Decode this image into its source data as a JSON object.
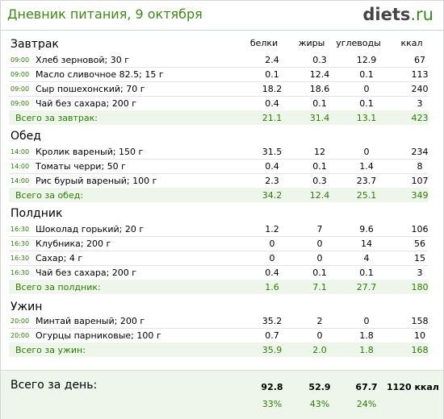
{
  "header": {
    "title": "Дневник питания, 9 октября",
    "brand_main": "diets",
    "brand_tld": ".ru"
  },
  "columns": {
    "protein": "белки",
    "fat": "жиры",
    "carbs": "углеводы",
    "kcal": "ккал"
  },
  "sections": [
    {
      "title": "Завтрак",
      "items": [
        {
          "time": "09:00",
          "name": "Хлеб зерновой; 30 г",
          "p": "2.4",
          "f": "0.3",
          "c": "12.9",
          "k": "67"
        },
        {
          "time": "09:00",
          "name": "Масло сливочное 82.5; 15 г",
          "p": "0.1",
          "f": "12.4",
          "c": "0.1",
          "k": "113"
        },
        {
          "time": "09:00",
          "name": "Сыр пошехонский; 70 г",
          "p": "18.2",
          "f": "18.6",
          "c": "0",
          "k": "240"
        },
        {
          "time": "09:00",
          "name": "Чай без сахара; 200 г",
          "p": "0.4",
          "f": "0.1",
          "c": "0.1",
          "k": "3"
        }
      ],
      "total": {
        "label": "Всего за завтрак:",
        "p": "21.1",
        "f": "31.4",
        "c": "13.1",
        "k": "423"
      }
    },
    {
      "title": "Обед",
      "items": [
        {
          "time": "14:00",
          "name": "Кролик вареный; 150 г",
          "p": "31.5",
          "f": "12",
          "c": "0",
          "k": "234"
        },
        {
          "time": "14:00",
          "name": "Томаты черри; 50 г",
          "p": "0.4",
          "f": "0.1",
          "c": "1.4",
          "k": "8"
        },
        {
          "time": "14:00",
          "name": "Рис бурый вареный; 100 г",
          "p": "2.3",
          "f": "0.3",
          "c": "23.7",
          "k": "107"
        }
      ],
      "total": {
        "label": "Всего за обед:",
        "p": "34.2",
        "f": "12.4",
        "c": "25.1",
        "k": "349"
      }
    },
    {
      "title": "Полдник",
      "items": [
        {
          "time": "16:30",
          "name": "Шоколад горький; 20 г",
          "p": "1.2",
          "f": "7",
          "c": "9.6",
          "k": "106"
        },
        {
          "time": "16:30",
          "name": "Клубника; 200 г",
          "p": "0",
          "f": "0",
          "c": "14",
          "k": "56"
        },
        {
          "time": "16:30",
          "name": "Сахар; 4 г",
          "p": "0",
          "f": "0",
          "c": "4",
          "k": "15"
        },
        {
          "time": "16:30",
          "name": "Чай без сахара; 200 г",
          "p": "0.4",
          "f": "0.1",
          "c": "0.1",
          "k": "3"
        }
      ],
      "total": {
        "label": "Всего за полдник:",
        "p": "1.6",
        "f": "7.1",
        "c": "27.7",
        "k": "180"
      }
    },
    {
      "title": "Ужин",
      "items": [
        {
          "time": "20:00",
          "name": "Минтай вареный; 200 г",
          "p": "35.2",
          "f": "2",
          "c": "0",
          "k": "158"
        },
        {
          "time": "20:00",
          "name": "Огурцы парниковые; 100 г",
          "p": "0.7",
          "f": "0",
          "c": "1.8",
          "k": "10"
        }
      ],
      "total": {
        "label": "Всего за ужин:",
        "p": "35.9",
        "f": "2.0",
        "c": "1.8",
        "k": "168"
      }
    }
  ],
  "day": {
    "label": "Всего за день:",
    "p": "92.8",
    "f": "52.9",
    "c": "67.7",
    "k": "1120 ккал",
    "p_pct": "33%",
    "f_pct": "43%",
    "c_pct": "24%"
  }
}
